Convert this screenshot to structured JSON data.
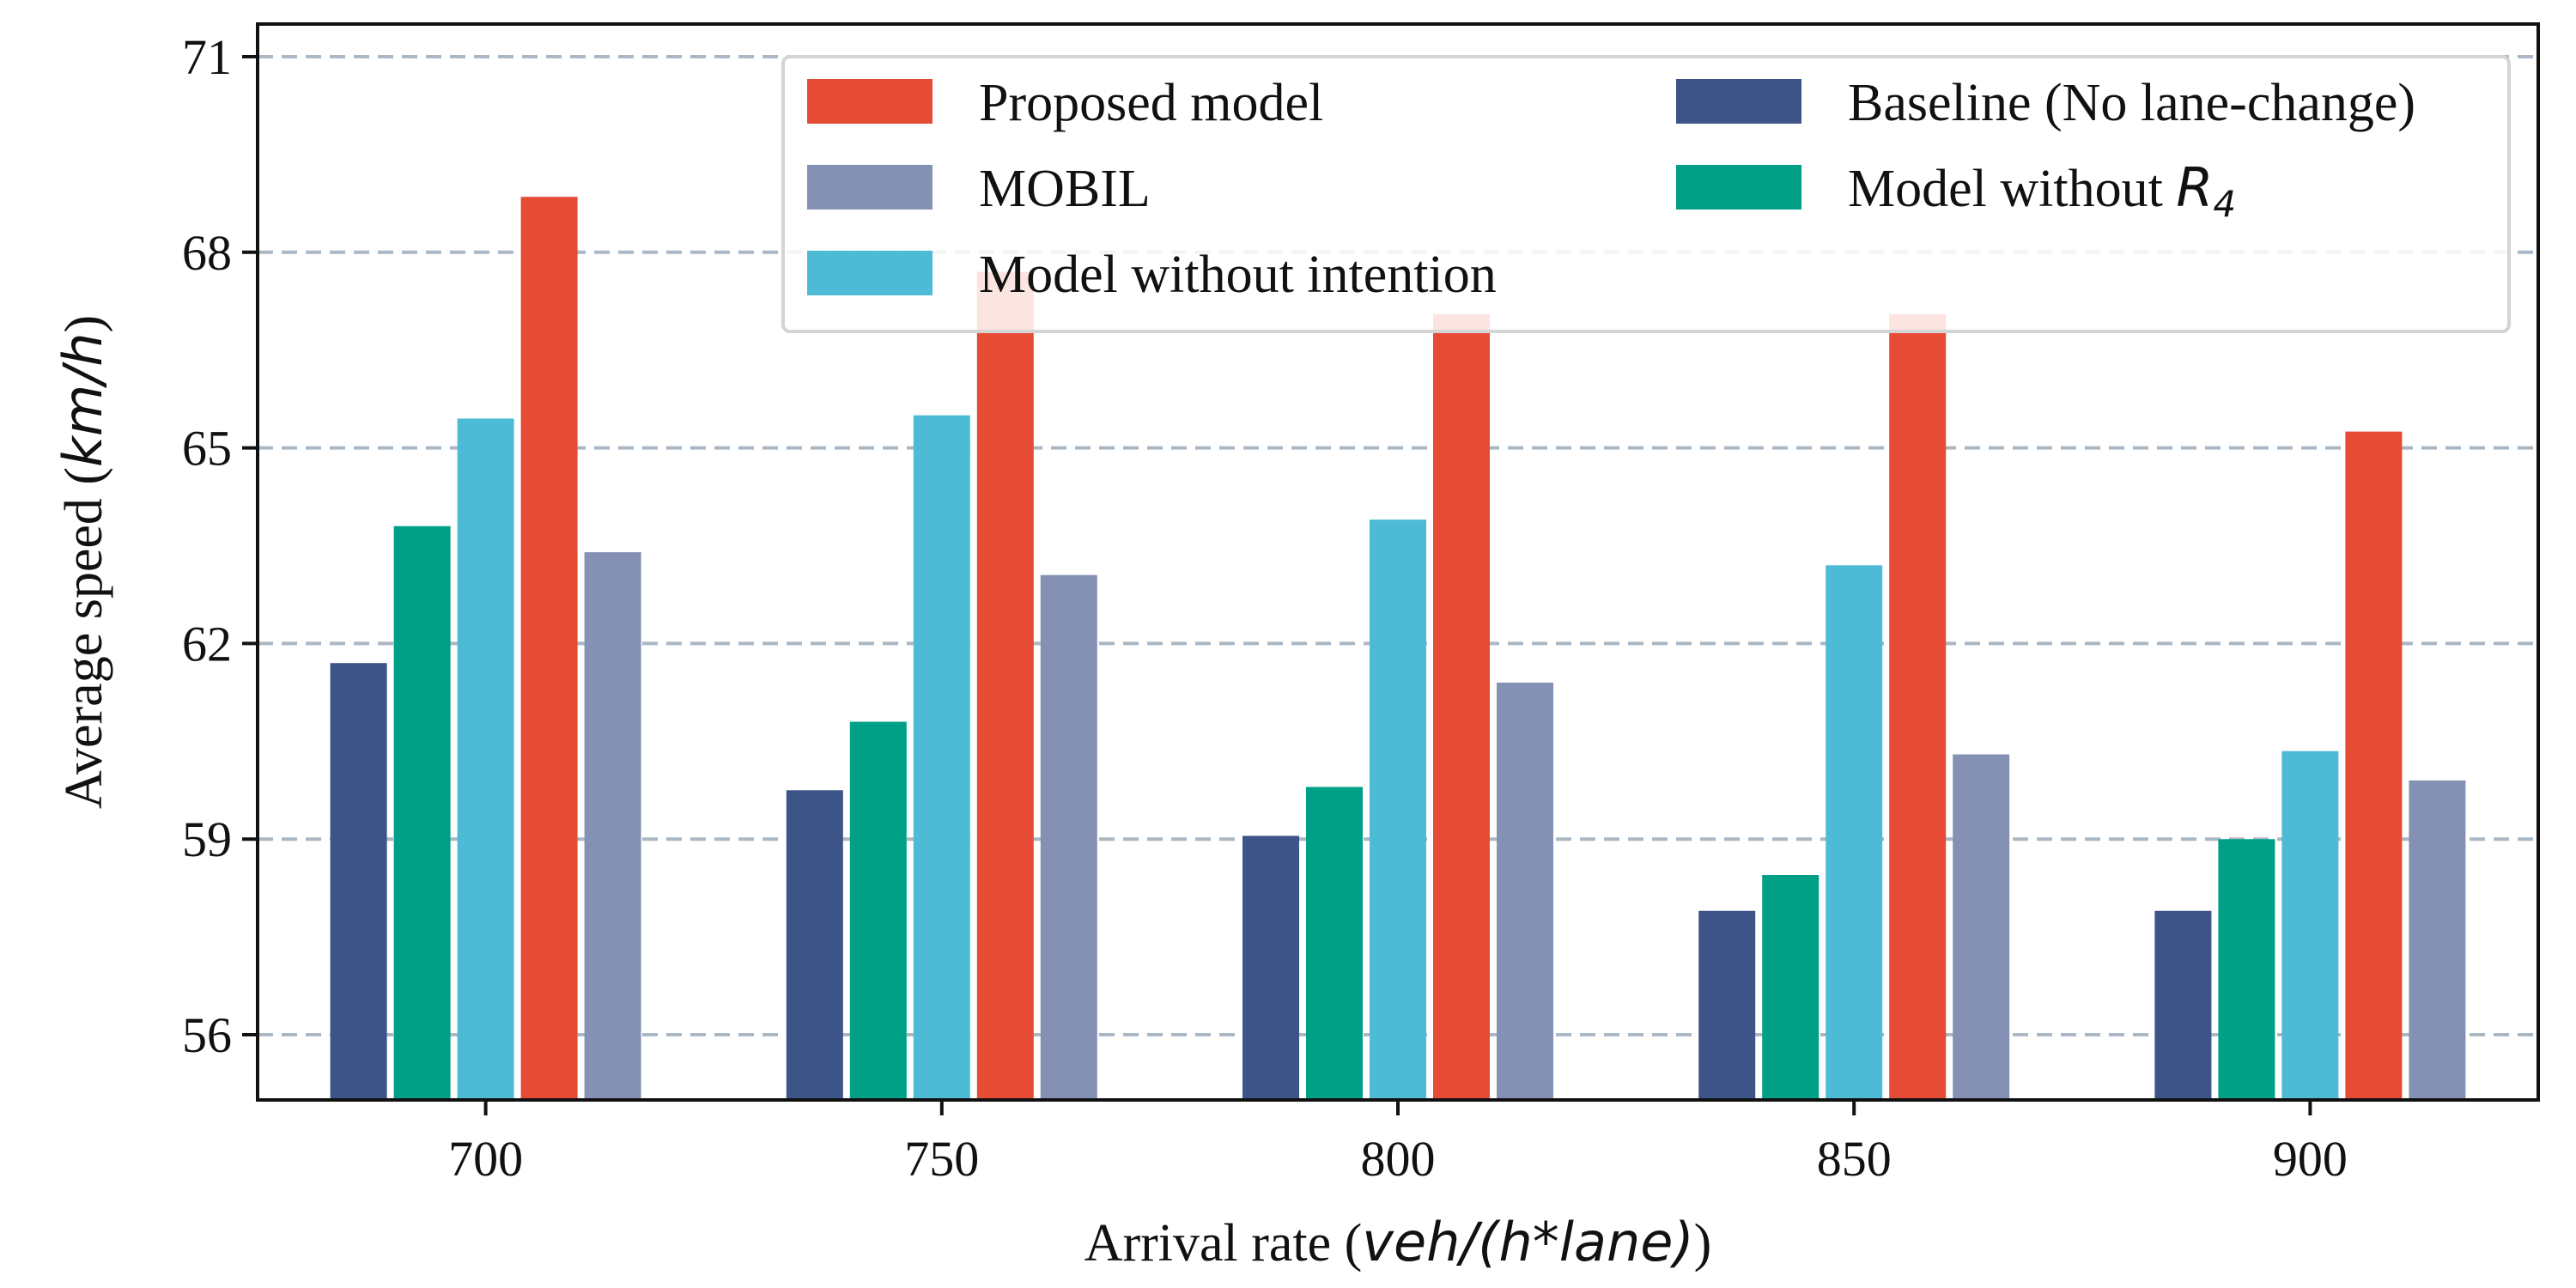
{
  "chart_data": {
    "type": "bar",
    "xlabel_text": "Arrival rate (",
    "xlabel_math": "veh/(h*lane)",
    "xlabel_close": ")",
    "ylabel_text": "Average speed (",
    "ylabel_math": "km/h",
    "ylabel_close": ")",
    "categories": [
      "700",
      "750",
      "800",
      "850",
      "900"
    ],
    "yticks": [
      "56",
      "59",
      "62",
      "65",
      "68",
      "71"
    ],
    "ylim": [
      55,
      71.5
    ],
    "grid": "horizontal dashed",
    "legend_placement": "top-right",
    "series": [
      {
        "name": "Baseline (No lane-change)",
        "color": "#3c5488",
        "values": [
          61.7,
          59.75,
          59.05,
          57.9,
          57.9
        ]
      },
      {
        "name_prefix": "Model without ",
        "name_math": "R",
        "name_sub": "4",
        "color": "#00a087",
        "values": [
          63.8,
          60.8,
          59.8,
          58.45,
          59.0
        ]
      },
      {
        "name": "Model without intention",
        "color": "#4dbbd5",
        "values": [
          65.45,
          65.5,
          63.9,
          63.2,
          60.35
        ]
      },
      {
        "name": "Proposed model",
        "color": "#e64b35",
        "values": [
          68.85,
          67.7,
          67.05,
          67.05,
          65.25
        ]
      },
      {
        "name": "MOBIL",
        "color": "#8491b4",
        "values": [
          63.4,
          63.05,
          61.4,
          60.3,
          59.9
        ]
      }
    ],
    "legend_order": [
      3,
      4,
      2,
      0,
      1
    ]
  },
  "colors": {
    "grid": "#aab7c4",
    "axis": "#111111",
    "legend_border": "#d4d4d4"
  }
}
